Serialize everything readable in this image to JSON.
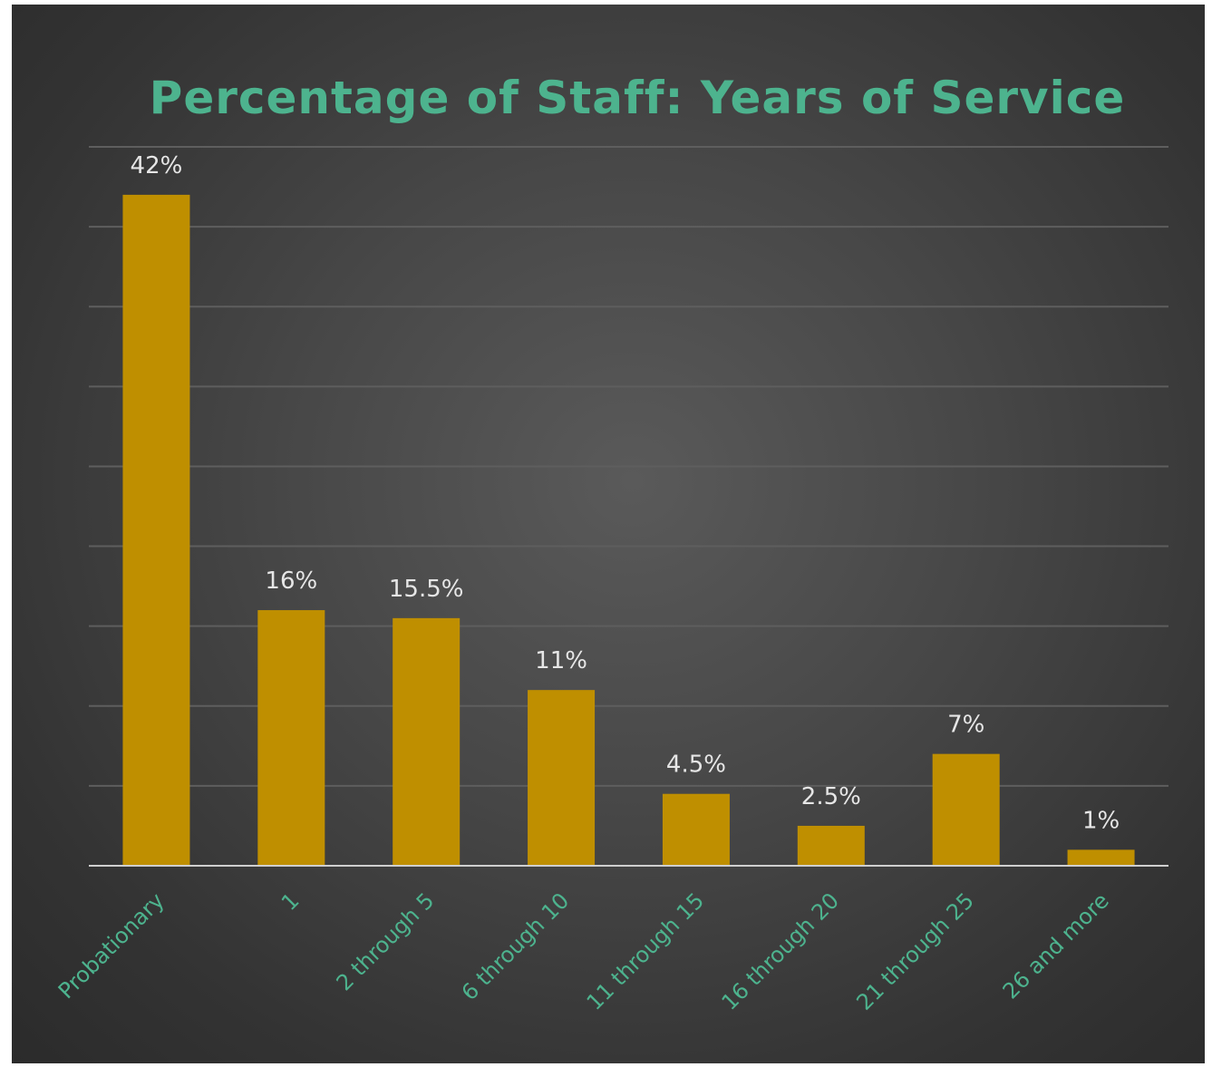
{
  "chart_data": {
    "type": "bar",
    "title": "Percentage of Staff: Years of Service",
    "categories": [
      "Probationary",
      "1",
      "2 through 5",
      "6 through 10",
      "11 through 15",
      "16 through 20",
      "21 through 25",
      "26 and more"
    ],
    "values": [
      42,
      16,
      15.5,
      11,
      4.5,
      2.5,
      7,
      1
    ],
    "data_labels": [
      "42%",
      "16%",
      "15.5%",
      "11%",
      "4.5%",
      "2.5%",
      "7%",
      "1%"
    ],
    "xlabel": "",
    "ylabel": "",
    "ylim": [
      0,
      45
    ],
    "grid": true,
    "legend": "none",
    "colors": {
      "bar": "#bf8f00",
      "title": "#4db38e",
      "tick_labels": "#4db38e",
      "data_labels": "#e6e6e6",
      "gridlines": "#5e5e5e",
      "axis": "#cfcfcf"
    }
  }
}
